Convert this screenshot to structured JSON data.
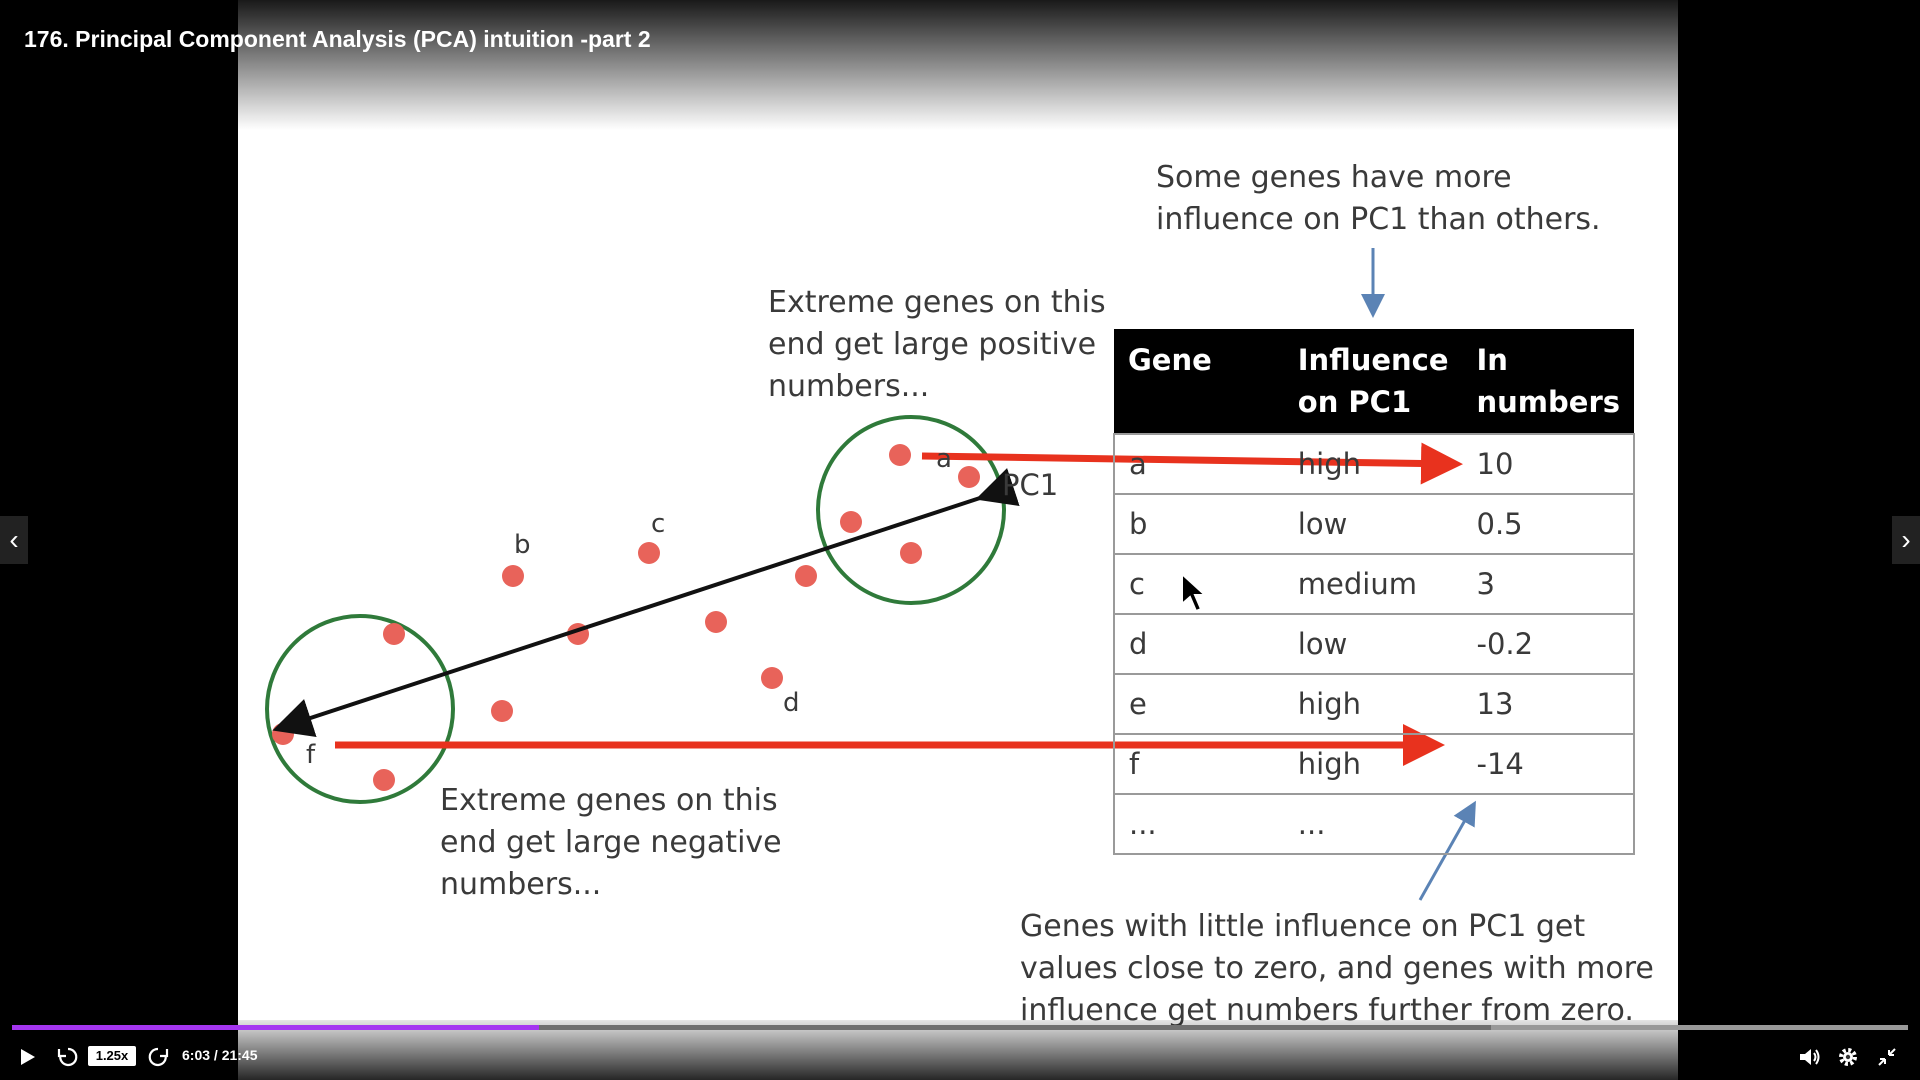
{
  "video": {
    "title": "176. Principal Component Analysis (PCA) intuition -part 2",
    "speed": "1.25x",
    "time": "6:03 / 21:45",
    "progress": 0.278,
    "buffered": 0.78,
    "accent_color": "#a435f0"
  },
  "slide": {
    "note_top": [
      "Some genes have more",
      "influence on PC1 than others."
    ],
    "note_positive": [
      "Extreme genes on this",
      "end get large positive",
      "numbers..."
    ],
    "note_negative": [
      "Extreme genes on this",
      "end get large negative",
      "numbers..."
    ],
    "note_bottom": [
      "Genes with little influence on PC1 get",
      "values close to zero, and genes with more",
      "influence get numbers further from zero."
    ],
    "axis_label": "PC1",
    "point_labels": {
      "a": "a",
      "b": "b",
      "c": "c",
      "d": "d",
      "f": "f"
    },
    "table": {
      "headers": [
        "Gene",
        "Influence on PC1",
        "In numbers"
      ],
      "rows": [
        [
          "a",
          "high",
          "10"
        ],
        [
          "b",
          "low",
          "0.5"
        ],
        [
          "c",
          "medium",
          "3"
        ],
        [
          "d",
          "low",
          "-0.2"
        ],
        [
          "e",
          "high",
          "13"
        ],
        [
          "f",
          "high",
          "-14"
        ],
        [
          "...",
          "...",
          ""
        ]
      ]
    }
  },
  "icons": [
    "chevron-left-icon",
    "chevron-right-icon",
    "play-icon",
    "rewind-icon",
    "forward-icon",
    "volume-icon",
    "gear-icon",
    "exit-fullscreen-icon"
  ]
}
